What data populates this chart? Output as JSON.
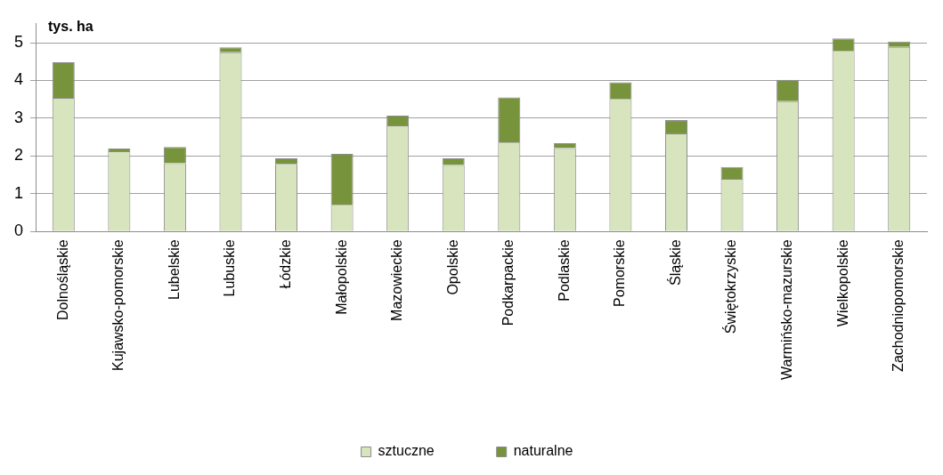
{
  "chart_data": {
    "type": "bar",
    "ylabel": "tys. ha",
    "stacked": true,
    "categories": [
      "Dolnośląskie",
      "Kujawsko-pomorskie",
      "Lubelskie",
      "Lubuskie",
      "Łódzkie",
      "Małopolskie",
      "Mazowieckie",
      "Opolskie",
      "Podkarpackie",
      "Podlaskie",
      "Pomorskie",
      "Śląskie",
      "Świętokrzyskie",
      "Warmińsko-mazurskie",
      "Wielkopolskie",
      "Zachodniopomorskie"
    ],
    "series": [
      {
        "name": "sztuczne",
        "color": "#d7e4bd",
        "values": [
          3.54,
          2.13,
          1.81,
          4.75,
          1.79,
          0.71,
          2.81,
          1.76,
          2.36,
          2.21,
          3.51,
          2.6,
          1.4,
          3.45,
          4.78,
          4.89
        ]
      },
      {
        "name": "naturalne",
        "color": "#77933c",
        "values": [
          0.94,
          0.07,
          0.43,
          0.13,
          0.15,
          1.35,
          0.26,
          0.18,
          1.19,
          0.13,
          0.44,
          0.35,
          0.31,
          0.57,
          0.33,
          0.14
        ]
      }
    ],
    "ylim": [
      0,
      5.5
    ],
    "yticks": [
      0,
      1,
      2,
      3,
      4,
      5
    ],
    "grid": "y",
    "legend": "bottom"
  }
}
